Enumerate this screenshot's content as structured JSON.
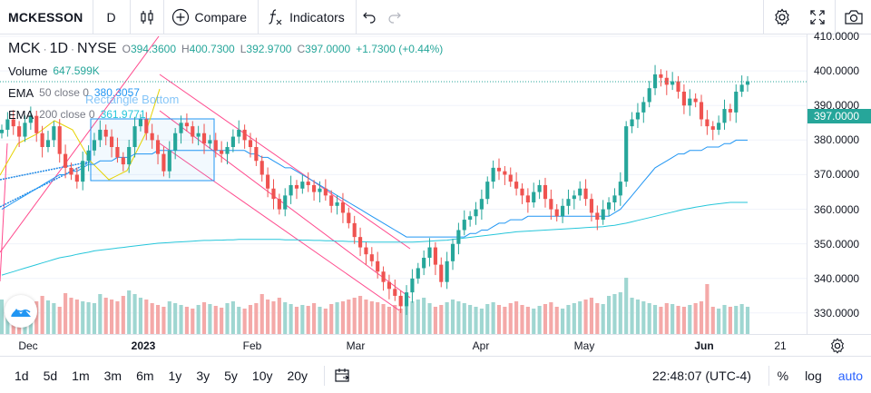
{
  "toolbar": {
    "symbol": "MCKESSON",
    "interval": "D",
    "compare_label": "Compare",
    "indicators_label": "Indicators"
  },
  "legend": {
    "ticker": "MCK",
    "interval": "1D",
    "exchange": "NYSE",
    "open_label": "O",
    "open": "394.3600",
    "high_label": "H",
    "high": "400.7300",
    "low_label": "L",
    "low": "392.9700",
    "close_label": "C",
    "close": "397.0000",
    "change": "+1.7300 (+0.44%)",
    "volume_label": "Volume",
    "volume": "647.599K",
    "ema50_label": "EMA",
    "ema50_params": "50 close 0",
    "ema50_value": "380.3057",
    "ema200_label": "EMA",
    "ema200_params": "200 close 0",
    "ema200_value": "361.9771"
  },
  "drawing_label": "Rectangle Bottom",
  "price_scale": {
    "labels": [
      "410.0000",
      "400.0000",
      "390.0000",
      "380.0000",
      "370.0000",
      "360.0000",
      "350.0000",
      "340.0000",
      "330.0000"
    ],
    "last_price": "397.0000"
  },
  "time_axis": {
    "labels": [
      {
        "text": "Dec",
        "bold": false
      },
      {
        "text": "2023",
        "bold": true
      },
      {
        "text": "Feb",
        "bold": false
      },
      {
        "text": "Mar",
        "bold": false
      },
      {
        "text": "Apr",
        "bold": false
      },
      {
        "text": "May",
        "bold": false
      },
      {
        "text": "Jun",
        "bold": true
      },
      {
        "text": "21",
        "bold": false
      }
    ]
  },
  "bottom_bar": {
    "ranges": [
      "1d",
      "5d",
      "1m",
      "3m",
      "6m",
      "1y",
      "3y",
      "5y",
      "10y",
      "20y"
    ],
    "clock": "22:48:07 (UTC-4)",
    "percent": "%",
    "log": "log",
    "auto": "auto"
  },
  "colors": {
    "up": "#26a69a",
    "down": "#ef5350",
    "ema50": "#2196f3",
    "ema200": "#26c6da",
    "channel": "#ff4a8d",
    "rectangle": "#2196f3"
  },
  "icons": [
    "candles-icon",
    "plus-circle-icon",
    "fx-icon",
    "undo-icon",
    "redo-icon",
    "gear-icon",
    "fullscreen-icon",
    "camera-icon",
    "calendar-range-icon",
    "tradingview-logo-icon"
  ],
  "chart_data": {
    "type": "candlestick",
    "ohlc_sample_last": {
      "open": 394.36,
      "high": 400.73,
      "low": 392.97,
      "close": 397.0
    },
    "ylim": [
      326,
      412
    ],
    "yticks": [
      410,
      400,
      390,
      380,
      370,
      360,
      350,
      340,
      330
    ],
    "x_month_labels": [
      "Dec",
      "2023",
      "Feb",
      "Mar",
      "Apr",
      "May",
      "Jun",
      "21"
    ],
    "closes": [
      383,
      386,
      384,
      381,
      385,
      387,
      382,
      378,
      380,
      384,
      376,
      372,
      370,
      368,
      374,
      377,
      380,
      383,
      381,
      378,
      375,
      373,
      378,
      384,
      386,
      382,
      380,
      376,
      371,
      377,
      382,
      385,
      384,
      381,
      382,
      379,
      380,
      377,
      376,
      378,
      381,
      383,
      380,
      378,
      374,
      370,
      366,
      363,
      360,
      364,
      367,
      366,
      368,
      367,
      365,
      366,
      364,
      361,
      362,
      359,
      356,
      352,
      349,
      347,
      345,
      342,
      339,
      337,
      335,
      332,
      336,
      340,
      343,
      346,
      349,
      344,
      339,
      345,
      350,
      354,
      357,
      358,
      360,
      363,
      368,
      372,
      371,
      370,
      368,
      366,
      364,
      362,
      365,
      367,
      363,
      360,
      358,
      361,
      363,
      364,
      366,
      363,
      359,
      357,
      360,
      362,
      364,
      368,
      384,
      386,
      388,
      391,
      395,
      399,
      398,
      396,
      397,
      394,
      390,
      392,
      391,
      386,
      384,
      383,
      385,
      389,
      388,
      394,
      396,
      397
    ],
    "volumes": [
      38,
      32,
      35,
      40,
      38,
      33,
      36,
      42,
      37,
      34,
      30,
      45,
      40,
      38,
      36,
      35,
      34,
      44,
      40,
      38,
      36,
      42,
      48,
      44,
      40,
      38,
      34,
      32,
      30,
      36,
      34,
      32,
      30,
      28,
      32,
      35,
      33,
      31,
      29,
      34,
      36,
      30,
      28,
      32,
      34,
      44,
      38,
      36,
      40,
      35,
      33,
      30,
      32,
      31,
      34,
      30,
      28,
      33,
      35,
      36,
      38,
      40,
      42,
      38,
      36,
      35,
      33,
      30,
      32,
      28,
      34,
      36,
      38,
      40,
      34,
      30,
      32,
      35,
      38,
      36,
      34,
      32,
      30,
      28,
      33,
      35,
      32,
      30,
      34,
      36,
      32,
      30,
      28,
      31,
      33,
      35,
      30,
      28,
      32,
      34,
      36,
      38,
      40,
      34,
      33,
      42,
      44,
      46,
      62,
      40,
      38,
      36,
      34,
      32,
      30,
      34,
      33,
      31,
      30,
      32,
      34,
      36,
      55,
      30,
      28,
      32,
      30,
      31,
      33,
      30
    ],
    "ema50": [
      360,
      361,
      362,
      363,
      364,
      365,
      366,
      367,
      368,
      369,
      370,
      370,
      371,
      371,
      372,
      373,
      373,
      374,
      374,
      374,
      375,
      375,
      375,
      376,
      376,
      376,
      376,
      377,
      377,
      377,
      377,
      377,
      377,
      377,
      377,
      377,
      377,
      377,
      377,
      377,
      377,
      377,
      377,
      376,
      376,
      375,
      375,
      374,
      373,
      372,
      372,
      371,
      370,
      369,
      368,
      367,
      366,
      365,
      364,
      363,
      362,
      361,
      360,
      359,
      358,
      357,
      356,
      355,
      354,
      353,
      352,
      352,
      352,
      352,
      352,
      352,
      352,
      352,
      352,
      352,
      352,
      353,
      353,
      354,
      354,
      355,
      356,
      356,
      357,
      357,
      357,
      358,
      358,
      358,
      358,
      358,
      358,
      358,
      358,
      358,
      358,
      358,
      358,
      358,
      358,
      358,
      359,
      360,
      362,
      364,
      366,
      368,
      370,
      372,
      373,
      374,
      375,
      376,
      376,
      377,
      377,
      377,
      378,
      378,
      378,
      379,
      379,
      380,
      380,
      380
    ],
    "ema200": [
      341,
      341.5,
      342,
      342.5,
      343,
      343.5,
      344,
      344.5,
      345,
      345.5,
      346,
      346.3,
      346.6,
      347,
      347.3,
      347.6,
      348,
      348.2,
      348.4,
      348.6,
      348.8,
      349,
      349.2,
      349.4,
      349.6,
      349.8,
      350,
      350.2,
      350.3,
      350.4,
      350.5,
      350.6,
      350.7,
      350.8,
      350.9,
      351,
      351,
      351.1,
      351.1,
      351.2,
      351.2,
      351.3,
      351.3,
      351.3,
      351.3,
      351.3,
      351.3,
      351.3,
      351.3,
      351.2,
      351.2,
      351.2,
      351.1,
      351.1,
      351,
      351,
      350.9,
      350.9,
      350.8,
      350.8,
      350.7,
      350.7,
      350.6,
      350.6,
      350.5,
      350.5,
      350.5,
      350.5,
      350.5,
      350.5,
      350.5,
      350.5,
      350.6,
      350.7,
      350.8,
      350.9,
      351,
      351.1,
      351.3,
      351.5,
      351.7,
      351.9,
      352.1,
      352.3,
      352.5,
      352.7,
      352.9,
      353.1,
      353.3,
      353.5,
      353.6,
      353.7,
      353.8,
      353.9,
      354,
      354.1,
      354.2,
      354.3,
      354.4,
      354.5,
      354.6,
      354.7,
      354.8,
      354.9,
      355,
      355.2,
      355.4,
      355.7,
      356,
      356.4,
      356.8,
      357.2,
      357.6,
      358,
      358.4,
      358.8,
      359.2,
      359.6,
      360,
      360.3,
      360.6,
      360.9,
      361.2,
      361.4,
      361.6,
      361.8,
      362,
      362,
      362,
      362
    ]
  }
}
